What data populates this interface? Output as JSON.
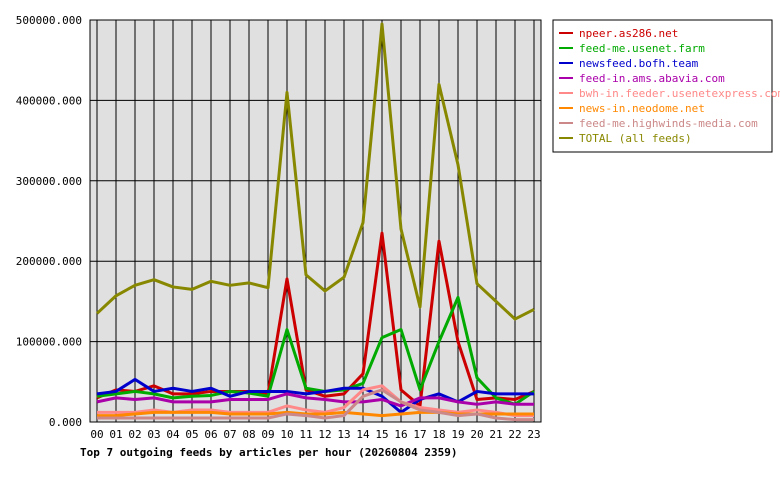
{
  "chart_data": {
    "type": "line",
    "title": "Top 7 outgoing feeds by articles per hour (20260804 2359)",
    "xlabel": "",
    "ylabel": "",
    "x": [
      "00",
      "01",
      "02",
      "03",
      "04",
      "05",
      "06",
      "07",
      "08",
      "09",
      "10",
      "11",
      "12",
      "13",
      "14",
      "15",
      "16",
      "17",
      "18",
      "19",
      "20",
      "21",
      "22",
      "23"
    ],
    "ylim": [
      0,
      500000
    ],
    "yticks": [
      "0.000",
      "100000.000",
      "200000.000",
      "300000.000",
      "400000.000",
      "500000.000"
    ],
    "ytick_values": [
      0,
      100000,
      200000,
      300000,
      400000,
      500000
    ],
    "grid": true,
    "legend_position": "right",
    "series": [
      {
        "name": "npeer.as286.net",
        "color": "#cc0000",
        "values": [
          30000,
          40000,
          38000,
          45000,
          35000,
          35000,
          38000,
          38000,
          38000,
          35000,
          178000,
          40000,
          32000,
          35000,
          60000,
          235000,
          40000,
          20000,
          225000,
          100000,
          28000,
          30000,
          28000,
          38000
        ]
      },
      {
        "name": "feed-me.usenet.farm",
        "color": "#00aa00",
        "values": [
          32000,
          35000,
          38000,
          35000,
          30000,
          32000,
          33000,
          38000,
          36000,
          32000,
          115000,
          42000,
          38000,
          40000,
          48000,
          105000,
          115000,
          40000,
          100000,
          155000,
          55000,
          30000,
          22000,
          38000
        ]
      },
      {
        "name": "newsfeed.bofh.team",
        "color": "#0000cc",
        "values": [
          35000,
          38000,
          53000,
          38000,
          42000,
          38000,
          42000,
          32000,
          38000,
          38000,
          38000,
          35000,
          38000,
          42000,
          42000,
          32000,
          12000,
          28000,
          35000,
          25000,
          38000,
          35000,
          35000,
          35000
        ]
      },
      {
        "name": "feed-in.ams.abavia.com",
        "color": "#aa00aa",
        "values": [
          25000,
          30000,
          28000,
          30000,
          25000,
          25000,
          25000,
          28000,
          28000,
          28000,
          35000,
          30000,
          28000,
          25000,
          25000,
          28000,
          20000,
          30000,
          30000,
          25000,
          22000,
          25000,
          22000,
          22000
        ]
      },
      {
        "name": "bwh-in.feeder.usenetexpress.com",
        "color": "#ff8888",
        "values": [
          12000,
          12000,
          12000,
          15000,
          12000,
          15000,
          15000,
          12000,
          12000,
          12000,
          20000,
          15000,
          12000,
          18000,
          40000,
          45000,
          25000,
          18000,
          15000,
          12000,
          15000,
          12000,
          8000,
          8000
        ]
      },
      {
        "name": "news-in.neodome.net",
        "color": "#ff8800",
        "values": [
          8000,
          8000,
          10000,
          12000,
          12000,
          12000,
          12000,
          10000,
          10000,
          10000,
          12000,
          10000,
          10000,
          12000,
          10000,
          8000,
          10000,
          12000,
          12000,
          10000,
          10000,
          10000,
          10000,
          10000
        ]
      },
      {
        "name": "feed-me.highwinds-media.com",
        "color": "#cc8888",
        "values": [
          5000,
          5000,
          5000,
          5000,
          5000,
          5000,
          5000,
          5000,
          5000,
          5000,
          10000,
          8000,
          5000,
          8000,
          32000,
          40000,
          25000,
          15000,
          12000,
          8000,
          10000,
          5000,
          3000,
          3000
        ]
      },
      {
        "name": "TOTAL (all feeds)",
        "color": "#888800",
        "values": [
          135000,
          157000,
          170000,
          177000,
          168000,
          165000,
          175000,
          170000,
          173000,
          167000,
          410000,
          183000,
          163000,
          180000,
          248000,
          495000,
          240000,
          143000,
          420000,
          320000,
          172000,
          150000,
          128000,
          140000
        ]
      }
    ]
  }
}
